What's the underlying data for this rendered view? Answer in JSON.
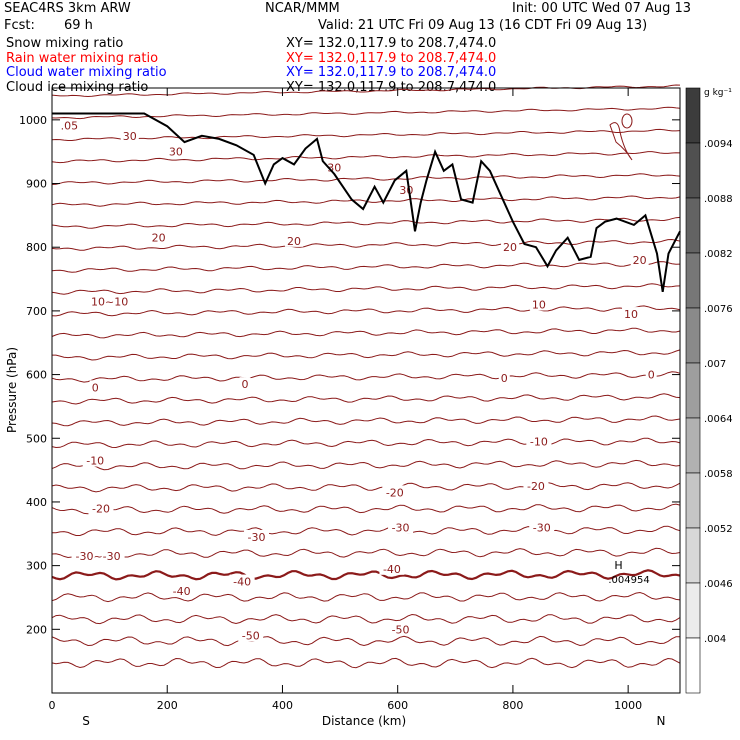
{
  "header": {
    "model": "SEAC4RS  3km ARW",
    "org": "NCAR/MMM",
    "init": "Init: 00 UTC Wed 07 Aug 13",
    "fcst_label": "Fcst:",
    "fcst_value": "69 h",
    "valid": "Valid: 21 UTC Fri 09 Aug 13 (16 CDT Fri 09 Aug 13)"
  },
  "fields": [
    {
      "name": "Snow mixing ratio",
      "xy": "XY= 132.0,117.9 to 208.7,474.0",
      "color": "#000000"
    },
    {
      "name": "Rain water mixing ratio",
      "xy": "XY= 132.0,117.9 to 208.7,474.0",
      "color": "#ff0000"
    },
    {
      "name": "Cloud water mixing ratio",
      "xy": "XY= 132.0,117.9 to 208.7,474.0",
      "color": "#0000ff"
    },
    {
      "name": "Cloud ice mixing ratio",
      "xy": "XY= 132.0,117.9 to 208.7,474.0",
      "color": "#000000"
    }
  ],
  "chart_data": {
    "type": "line",
    "xlabel": "Distance (km)",
    "ylabel": "Pressure (hPa)",
    "xlim": [
      0,
      1090
    ],
    "ylim": [
      1050,
      100
    ],
    "xticks": [
      0,
      200,
      400,
      600,
      800,
      1000
    ],
    "yticks": [
      200,
      300,
      400,
      500,
      600,
      700,
      800,
      900,
      1000
    ],
    "x_end_labels": {
      "left": "S",
      "right": "N"
    },
    "isotherm_color": "#8b1a1a",
    "contour_labels": [
      {
        "x": 345,
        "p": 190,
        "text": "-50"
      },
      {
        "x": 605,
        "p": 200,
        "text": "-50"
      },
      {
        "x": 225,
        "p": 260,
        "text": "-40"
      },
      {
        "x": 330,
        "p": 275,
        "text": "-40"
      },
      {
        "x": 590,
        "p": 295,
        "text": "-40"
      },
      {
        "x": 80,
        "p": 315,
        "text": "-30~-30"
      },
      {
        "x": 355,
        "p": 345,
        "text": "-30"
      },
      {
        "x": 605,
        "p": 360,
        "text": "-30"
      },
      {
        "x": 850,
        "p": 360,
        "text": "-30"
      },
      {
        "x": 85,
        "p": 390,
        "text": "-20"
      },
      {
        "x": 595,
        "p": 415,
        "text": "-20"
      },
      {
        "x": 840,
        "p": 425,
        "text": "-20"
      },
      {
        "x": 75,
        "p": 465,
        "text": "-10"
      },
      {
        "x": 845,
        "p": 495,
        "text": "-10"
      },
      {
        "x": 75,
        "p": 580,
        "text": "0"
      },
      {
        "x": 335,
        "p": 585,
        "text": "0"
      },
      {
        "x": 785,
        "p": 595,
        "text": "0"
      },
      {
        "x": 1040,
        "p": 600,
        "text": "0"
      },
      {
        "x": 100,
        "p": 715,
        "text": "10~10"
      },
      {
        "x": 845,
        "p": 710,
        "text": "10"
      },
      {
        "x": 1005,
        "p": 695,
        "text": "10"
      },
      {
        "x": 185,
        "p": 815,
        "text": "20"
      },
      {
        "x": 420,
        "p": 810,
        "text": "20"
      },
      {
        "x": 795,
        "p": 800,
        "text": "20"
      },
      {
        "x": 1020,
        "p": 780,
        "text": "20"
      },
      {
        "x": 490,
        "p": 925,
        "text": "30"
      },
      {
        "x": 215,
        "p": 950,
        "text": "30"
      },
      {
        "x": 135,
        "p": 975,
        "text": "30"
      },
      {
        "x": 615,
        "p": 890,
        "text": "30"
      }
    ],
    "max_marker": {
      "symbol": "H",
      "value": ".004954",
      "x": 990,
      "p": 285
    },
    "corner_label": {
      "text": ".05",
      "x": 15,
      "p": 985
    },
    "terrain": {
      "x": [
        0,
        160,
        200,
        230,
        260,
        290,
        320,
        350,
        370,
        385,
        400,
        420,
        440,
        460,
        470,
        490,
        520,
        540,
        560,
        575,
        595,
        615,
        630,
        640,
        650,
        665,
        680,
        695,
        710,
        730,
        745,
        760,
        780,
        800,
        820,
        840,
        860,
        875,
        895,
        915,
        935,
        945,
        960,
        980,
        1010,
        1030,
        1050,
        1060,
        1070,
        1090
      ],
      "p": [
        1010,
        1010,
        990,
        965,
        975,
        970,
        960,
        945,
        900,
        930,
        940,
        930,
        955,
        970,
        935,
        915,
        875,
        860,
        895,
        870,
        905,
        920,
        825,
        870,
        905,
        950,
        920,
        930,
        875,
        870,
        935,
        920,
        880,
        840,
        805,
        800,
        770,
        795,
        815,
        780,
        785,
        830,
        840,
        845,
        835,
        850,
        790,
        730,
        790,
        825
      ]
    },
    "colorbar": {
      "unit": "g kg⁻¹",
      "labels": [
        ".0094",
        ".0088",
        ".0082",
        ".0076",
        ".007",
        ".0064",
        ".0058",
        ".0052",
        ".0046",
        ".004"
      ]
    }
  }
}
